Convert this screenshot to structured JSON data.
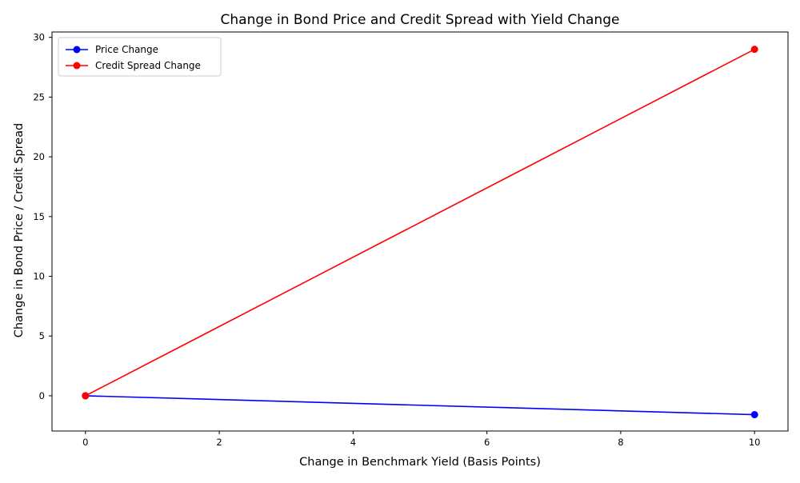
{
  "chart_data": {
    "type": "line",
    "title": "Change in Bond Price and Credit Spread with Yield Change",
    "xlabel": "Change in Benchmark Yield (Basis Points)",
    "ylabel": "Change in Bond Price / Credit Spread",
    "xlim": [
      -0.5,
      10.5
    ],
    "ylim": [
      -2.95,
      30.45
    ],
    "xticks": [
      0,
      2,
      4,
      6,
      8,
      10
    ],
    "yticks": [
      0,
      5,
      10,
      15,
      20,
      25,
      30
    ],
    "grid": false,
    "legend_position": "upper-left",
    "series": [
      {
        "name": "Price Change",
        "color": "#0000ff",
        "marker": "circle",
        "x": [
          0,
          10
        ],
        "y": [
          0,
          -1.58
        ]
      },
      {
        "name": "Credit Spread Change",
        "color": "#ff0000",
        "marker": "circle",
        "x": [
          0,
          10
        ],
        "y": [
          0,
          29
        ]
      }
    ]
  }
}
